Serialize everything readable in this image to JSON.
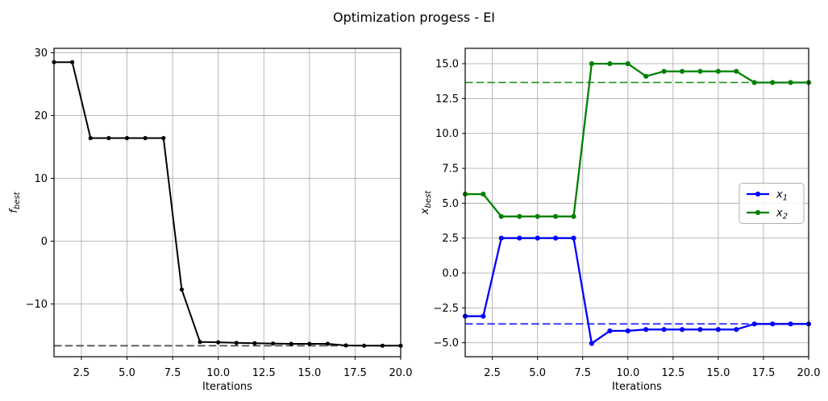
{
  "figure": {
    "title": "Optimization progess - EI",
    "background_color": "#ffffff",
    "grid_color": "#b0b0b0",
    "spine_color": "#000000",
    "legend_border_color": "#b0b0b0"
  },
  "chart_data": [
    {
      "type": "line",
      "name": "objective-convergence",
      "title": "",
      "xlabel": "Iterations",
      "ylabel": {
        "main": "f",
        "sub": "best"
      },
      "x": [
        1,
        2,
        3,
        4,
        5,
        6,
        7,
        8,
        9,
        10,
        11,
        12,
        13,
        14,
        15,
        16,
        17,
        18,
        19,
        20
      ],
      "series": [
        {
          "name": "f_best",
          "color": "#000000",
          "line_width": 2,
          "marker": "point",
          "marker_radius": 2.6,
          "values": [
            28.5,
            28.5,
            16.4,
            16.4,
            16.4,
            16.4,
            16.4,
            -7.7,
            -16.05,
            -16.1,
            -16.2,
            -16.25,
            -16.3,
            -16.35,
            -16.35,
            -16.35,
            -16.6,
            -16.65,
            -16.65,
            -16.65
          ]
        }
      ],
      "reference_lines": [
        {
          "y": -16.65,
          "color": "#4a4a4a",
          "style": "dashed",
          "opacity": 1
        }
      ],
      "xlim": [
        1,
        20
      ],
      "ylim": [
        -18.4,
        30.7
      ],
      "xticks": {
        "values": [
          2.5,
          5,
          7.5,
          10,
          12.5,
          15,
          17.5,
          20
        ],
        "labels": [
          "2.5",
          "5.0",
          "7.5",
          "10.0",
          "12.5",
          "15.0",
          "17.5",
          "20.0"
        ]
      },
      "yticks": {
        "values": [
          -10,
          0,
          10,
          20,
          30
        ],
        "labels": [
          "−10",
          "0",
          "10",
          "20",
          "30"
        ]
      },
      "grid": true,
      "legend": null
    },
    {
      "type": "line",
      "name": "best-coordinates",
      "title": "",
      "xlabel": "Iterations",
      "ylabel": {
        "main": "x",
        "sub": "best"
      },
      "x": [
        1,
        2,
        3,
        4,
        5,
        6,
        7,
        8,
        9,
        10,
        11,
        12,
        13,
        14,
        15,
        16,
        17,
        18,
        19,
        20
      ],
      "series": [
        {
          "name": "x1",
          "color": "#0000ff",
          "line_width": 2.3,
          "marker": "point",
          "marker_radius": 3.1,
          "values": [
            -3.1,
            -3.1,
            2.5,
            2.5,
            2.5,
            2.5,
            2.5,
            -5.05,
            -4.15,
            -4.15,
            -4.05,
            -4.05,
            -4.05,
            -4.05,
            -4.05,
            -4.05,
            -3.65,
            -3.65,
            -3.65,
            -3.65
          ]
        },
        {
          "name": "x2",
          "color": "#008000",
          "line_width": 2.3,
          "marker": "point",
          "marker_radius": 3.1,
          "values": [
            5.65,
            5.65,
            4.05,
            4.05,
            4.05,
            4.05,
            4.05,
            15.0,
            15.0,
            15.0,
            14.1,
            14.45,
            14.45,
            14.45,
            14.45,
            14.45,
            13.65,
            13.65,
            13.65,
            13.65
          ]
        }
      ],
      "reference_lines": [
        {
          "y": -3.65,
          "color": "#0000ff",
          "style": "dashed",
          "opacity": 0.85
        },
        {
          "y": 13.65,
          "color": "#008000",
          "style": "dashed",
          "opacity": 0.85
        }
      ],
      "xlim": [
        1,
        20
      ],
      "ylim": [
        -6.0,
        16.1
      ],
      "xticks": {
        "values": [
          2.5,
          5,
          7.5,
          10,
          12.5,
          15,
          17.5,
          20
        ],
        "labels": [
          "2.5",
          "5.0",
          "7.5",
          "10.0",
          "12.5",
          "15.0",
          "17.5",
          "20.0"
        ]
      },
      "yticks": {
        "values": [
          -5,
          -2.5,
          0,
          2.5,
          5,
          7.5,
          10,
          12.5,
          15
        ],
        "labels": [
          "−5.0",
          "−2.5",
          "0.0",
          "2.5",
          "5.0",
          "7.5",
          "10.0",
          "12.5",
          "15.0"
        ]
      },
      "grid": true,
      "legend": {
        "position": "center-right",
        "entries": [
          {
            "label_main": "x",
            "label_sub": "1",
            "color": "#0000ff"
          },
          {
            "label_main": "x",
            "label_sub": "2",
            "color": "#008000"
          }
        ]
      }
    }
  ]
}
